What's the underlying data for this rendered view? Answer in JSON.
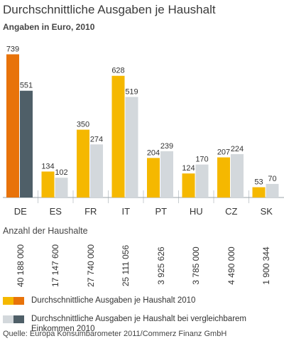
{
  "title": "Durchschnittliche Ausgaben je Haushalt",
  "subtitle": "Angaben in Euro, 2010",
  "chart_data": {
    "type": "bar",
    "categories": [
      "DE",
      "ES",
      "FR",
      "IT",
      "PT",
      "HU",
      "CZ",
      "SK"
    ],
    "series": [
      {
        "name": "Durchschnittliche Ausgaben je Haushalt 2010",
        "values": [
          739,
          134,
          350,
          628,
          204,
          124,
          207,
          53
        ]
      },
      {
        "name": "Durchschnittliche Ausgaben je Haushalt bei vergleichbarem Einkommen 2010",
        "values": [
          551,
          102,
          274,
          519,
          239,
          170,
          224,
          70
        ]
      }
    ],
    "ylim": [
      0,
      770
    ],
    "grid": false,
    "legend_position": "bottom"
  },
  "colors": {
    "series1_default": "#f5b800",
    "series1_highlight": "#e8730a",
    "series2_default": "#d3d8dc",
    "series2_highlight": "#4f5f68",
    "axis": "#9aa3a8",
    "separator": "#c8cdd0"
  },
  "households": {
    "label": "Anzahl der Haushalte",
    "values": [
      "40 188 000",
      "17 147 600",
      "27 740 000",
      "25 111 056",
      "3 925 626",
      "3 785 000",
      "4 490 000",
      "1 900 344"
    ]
  },
  "legend": {
    "items": [
      "Durchschnittliche Ausgaben je Haushalt 2010",
      "Durchschnittliche Ausgaben je Haushalt bei vergleichbarem Einkommen 2010"
    ]
  },
  "source": "Quelle: Europa Konsumbarometer 2011/Commerz Finanz GmbH"
}
